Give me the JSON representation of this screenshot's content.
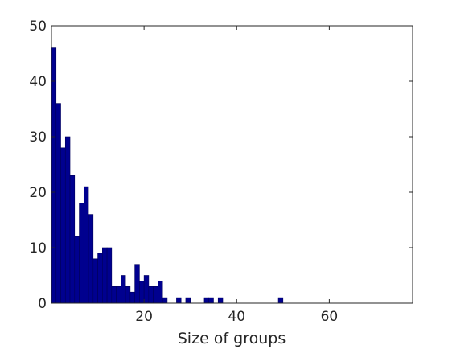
{
  "chart_data": {
    "type": "bar",
    "title": "",
    "xlabel": "Size of groups",
    "ylabel": "",
    "xlim": [
      0,
      78
    ],
    "ylim": [
      0,
      50
    ],
    "xticks": [
      20,
      40,
      60
    ],
    "yticks": [
      0,
      10,
      20,
      30,
      40,
      50
    ],
    "grid": false,
    "bar_color": "#00008f",
    "bins": [
      {
        "x": 1,
        "value": 46
      },
      {
        "x": 2,
        "value": 36
      },
      {
        "x": 3,
        "value": 28
      },
      {
        "x": 4,
        "value": 30
      },
      {
        "x": 5,
        "value": 23
      },
      {
        "x": 6,
        "value": 12
      },
      {
        "x": 7,
        "value": 18
      },
      {
        "x": 8,
        "value": 21
      },
      {
        "x": 9,
        "value": 16
      },
      {
        "x": 10,
        "value": 8
      },
      {
        "x": 11,
        "value": 9
      },
      {
        "x": 12,
        "value": 10
      },
      {
        "x": 13,
        "value": 10
      },
      {
        "x": 14,
        "value": 3
      },
      {
        "x": 15,
        "value": 3
      },
      {
        "x": 16,
        "value": 5
      },
      {
        "x": 17,
        "value": 3
      },
      {
        "x": 18,
        "value": 2
      },
      {
        "x": 19,
        "value": 7
      },
      {
        "x": 20,
        "value": 4
      },
      {
        "x": 21,
        "value": 5
      },
      {
        "x": 22,
        "value": 3
      },
      {
        "x": 23,
        "value": 3
      },
      {
        "x": 24,
        "value": 4
      },
      {
        "x": 25,
        "value": 1
      },
      {
        "x": 28,
        "value": 1
      },
      {
        "x": 30,
        "value": 1
      },
      {
        "x": 34,
        "value": 1
      },
      {
        "x": 35,
        "value": 1
      },
      {
        "x": 37,
        "value": 1
      },
      {
        "x": 50,
        "value": 1
      }
    ]
  }
}
